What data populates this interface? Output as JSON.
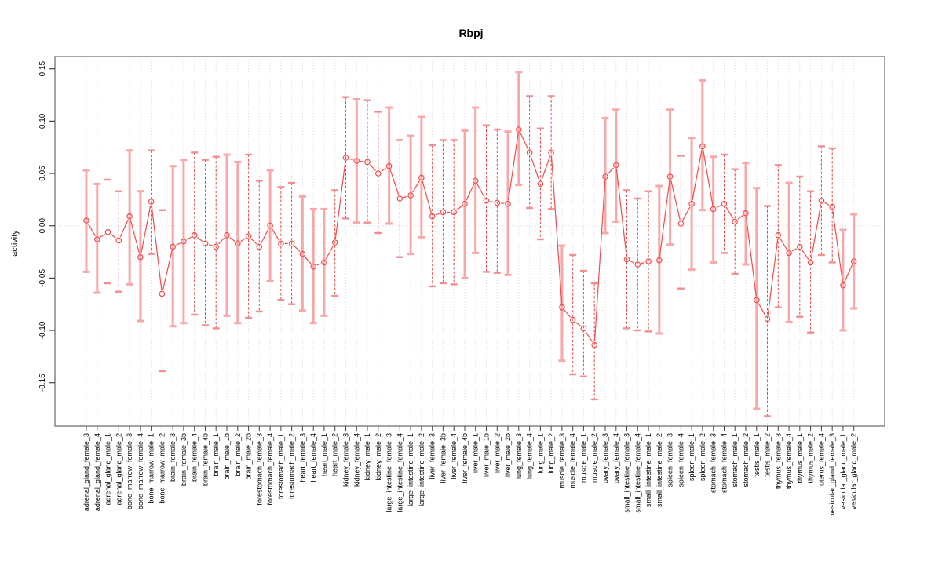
{
  "chart_data": {
    "type": "line",
    "subtype": "points-with-error-bars",
    "title": "Rbpj",
    "xlabel": "",
    "ylabel": "activity",
    "ylim": [
      -0.19,
      0.16
    ],
    "yticks": [
      "0.15",
      "0.10",
      "0.05",
      "0.00",
      "-0.05",
      "-0.10",
      "-0.15"
    ],
    "ytick_values": [
      0.15,
      0.1,
      0.05,
      0.0,
      -0.05,
      -0.1,
      -0.15
    ],
    "zero_line": true,
    "grid": "vertical-dotted-per-category",
    "legend": "none",
    "marker": "open-circle",
    "colors": {
      "line": "#f14c4c",
      "marker": "#f14c4c",
      "bar_solid": "#f8a8a8",
      "bar_dashed": "#e64545",
      "bar_dashed_cap": "#f08f8f",
      "grid": "#d4d4d4",
      "zero_line": "#d4d4d4",
      "box": "#858585",
      "tick": "#444444",
      "text": "#000000"
    },
    "points": [
      {
        "label": "adrenal_gland_female_3",
        "value": 0.005,
        "lo": -0.044,
        "hi": 0.053,
        "bar": "solid"
      },
      {
        "label": "adrenal_gland_female_4",
        "value": -0.013,
        "lo": -0.064,
        "hi": 0.04,
        "bar": "solid"
      },
      {
        "label": "adrenal_gland_male_1",
        "value": -0.006,
        "lo": -0.055,
        "hi": 0.044,
        "bar": "dashed"
      },
      {
        "label": "adrenal_gland_male_2",
        "value": -0.014,
        "lo": -0.063,
        "hi": 0.033,
        "bar": "dashed"
      },
      {
        "label": "bone_marrow_female_3",
        "value": 0.009,
        "lo": -0.056,
        "hi": 0.072,
        "bar": "solid"
      },
      {
        "label": "bone_marrow_female_4",
        "value": -0.03,
        "lo": -0.091,
        "hi": 0.033,
        "bar": "solid"
      },
      {
        "label": "bone_marrow_male_1",
        "value": 0.023,
        "lo": -0.027,
        "hi": 0.072,
        "bar": "dashed"
      },
      {
        "label": "bone_marrow_male_2",
        "value": -0.065,
        "lo": -0.139,
        "hi": 0.015,
        "bar": "dashed"
      },
      {
        "label": "brain_female_3",
        "value": -0.02,
        "lo": -0.096,
        "hi": 0.057,
        "bar": "solid"
      },
      {
        "label": "brain_female_3b",
        "value": -0.015,
        "lo": -0.093,
        "hi": 0.063,
        "bar": "solid"
      },
      {
        "label": "brain_female_4",
        "value": -0.009,
        "lo": -0.085,
        "hi": 0.07,
        "bar": "dashed"
      },
      {
        "label": "brain_female_4b",
        "value": -0.017,
        "lo": -0.095,
        "hi": 0.063,
        "bar": "dashed"
      },
      {
        "label": "brain_male_1",
        "value": -0.02,
        "lo": -0.098,
        "hi": 0.066,
        "bar": "dashed"
      },
      {
        "label": "brain_male_1b",
        "value": -0.009,
        "lo": -0.086,
        "hi": 0.068,
        "bar": "solid"
      },
      {
        "label": "brain_male_2",
        "value": -0.017,
        "lo": -0.093,
        "hi": 0.061,
        "bar": "solid"
      },
      {
        "label": "brain_male_2b",
        "value": -0.01,
        "lo": -0.088,
        "hi": 0.068,
        "bar": "dashed"
      },
      {
        "label": "forestomach_female_3",
        "value": -0.02,
        "lo": -0.082,
        "hi": 0.043,
        "bar": "dashed"
      },
      {
        "label": "forestomach_female_4",
        "value": 0.0,
        "lo": -0.053,
        "hi": 0.053,
        "bar": "solid"
      },
      {
        "label": "forestomach_male_1",
        "value": -0.017,
        "lo": -0.071,
        "hi": 0.037,
        "bar": "dashed"
      },
      {
        "label": "forestomach_male_2",
        "value": -0.017,
        "lo": -0.075,
        "hi": 0.041,
        "bar": "dashed"
      },
      {
        "label": "heart_female_3",
        "value": -0.027,
        "lo": -0.081,
        "hi": 0.028,
        "bar": "solid"
      },
      {
        "label": "heart_female_4",
        "value": -0.039,
        "lo": -0.093,
        "hi": 0.016,
        "bar": "solid"
      },
      {
        "label": "heart_male_1",
        "value": -0.035,
        "lo": -0.086,
        "hi": 0.016,
        "bar": "solid"
      },
      {
        "label": "heart_male_2",
        "value": -0.016,
        "lo": -0.067,
        "hi": 0.034,
        "bar": "dashed"
      },
      {
        "label": "kidney_female_3",
        "value": 0.065,
        "lo": 0.007,
        "hi": 0.123,
        "bar": "dashed"
      },
      {
        "label": "kidney_female_4",
        "value": 0.062,
        "lo": 0.003,
        "hi": 0.121,
        "bar": "solid"
      },
      {
        "label": "kidney_male_1",
        "value": 0.061,
        "lo": 0.003,
        "hi": 0.12,
        "bar": "dashed"
      },
      {
        "label": "kidney_male_2",
        "value": 0.05,
        "lo": -0.007,
        "hi": 0.109,
        "bar": "dashed"
      },
      {
        "label": "large_intestine_female_3",
        "value": 0.057,
        "lo": 0.002,
        "hi": 0.113,
        "bar": "solid"
      },
      {
        "label": "large_intestine_female_4",
        "value": 0.026,
        "lo": -0.03,
        "hi": 0.082,
        "bar": "dashed"
      },
      {
        "label": "large_intestine_male_1",
        "value": 0.029,
        "lo": -0.027,
        "hi": 0.086,
        "bar": "solid"
      },
      {
        "label": "large_intestine_male_2",
        "value": 0.046,
        "lo": -0.011,
        "hi": 0.104,
        "bar": "solid"
      },
      {
        "label": "liver_female_3",
        "value": 0.009,
        "lo": -0.058,
        "hi": 0.077,
        "bar": "dashed"
      },
      {
        "label": "liver_female_3b",
        "value": 0.013,
        "lo": -0.055,
        "hi": 0.082,
        "bar": "dashed"
      },
      {
        "label": "liver_female_4",
        "value": 0.013,
        "lo": -0.056,
        "hi": 0.082,
        "bar": "dashed"
      },
      {
        "label": "liver_female_4b",
        "value": 0.021,
        "lo": -0.05,
        "hi": 0.091,
        "bar": "solid"
      },
      {
        "label": "liver_male_1",
        "value": 0.043,
        "lo": -0.026,
        "hi": 0.113,
        "bar": "solid"
      },
      {
        "label": "liver_male_1b",
        "value": 0.024,
        "lo": -0.044,
        "hi": 0.096,
        "bar": "dashed"
      },
      {
        "label": "liver_male_2",
        "value": 0.022,
        "lo": -0.045,
        "hi": 0.092,
        "bar": "dashed"
      },
      {
        "label": "liver_male_2b",
        "value": 0.021,
        "lo": -0.047,
        "hi": 0.09,
        "bar": "solid"
      },
      {
        "label": "lung_female_3",
        "value": 0.092,
        "lo": 0.039,
        "hi": 0.147,
        "bar": "solid"
      },
      {
        "label": "lung_female_4",
        "value": 0.07,
        "lo": 0.017,
        "hi": 0.124,
        "bar": "dashed"
      },
      {
        "label": "lung_male_1",
        "value": 0.04,
        "lo": -0.013,
        "hi": 0.093,
        "bar": "dashed"
      },
      {
        "label": "lung_male_2",
        "value": 0.07,
        "lo": 0.016,
        "hi": 0.124,
        "bar": "dashed"
      },
      {
        "label": "muscle_female_3",
        "value": -0.078,
        "lo": -0.129,
        "hi": -0.019,
        "bar": "solid"
      },
      {
        "label": "muscle_female_4",
        "value": -0.09,
        "lo": -0.142,
        "hi": -0.028,
        "bar": "dashed"
      },
      {
        "label": "muscle_male_1",
        "value": -0.098,
        "lo": -0.144,
        "hi": -0.043,
        "bar": "dashed"
      },
      {
        "label": "muscle_male_2",
        "value": -0.114,
        "lo": -0.166,
        "hi": -0.055,
        "bar": "dashed"
      },
      {
        "label": "ovary_female_3",
        "value": 0.047,
        "lo": -0.007,
        "hi": 0.103,
        "bar": "solid"
      },
      {
        "label": "ovary_female_4",
        "value": 0.058,
        "lo": 0.004,
        "hi": 0.111,
        "bar": "solid"
      },
      {
        "label": "small_intestine_female_3",
        "value": -0.032,
        "lo": -0.098,
        "hi": 0.034,
        "bar": "dashed"
      },
      {
        "label": "small_intestine_female_4",
        "value": -0.037,
        "lo": -0.1,
        "hi": 0.026,
        "bar": "dashed"
      },
      {
        "label": "small_intestine_male_1",
        "value": -0.034,
        "lo": -0.101,
        "hi": 0.033,
        "bar": "dashed"
      },
      {
        "label": "small_intestine_male_2",
        "value": -0.033,
        "lo": -0.103,
        "hi": 0.038,
        "bar": "solid"
      },
      {
        "label": "spleen_female_3",
        "value": 0.047,
        "lo": -0.018,
        "hi": 0.111,
        "bar": "solid"
      },
      {
        "label": "spleen_female_4",
        "value": 0.002,
        "lo": -0.06,
        "hi": 0.067,
        "bar": "dashed"
      },
      {
        "label": "spleen_male_1",
        "value": 0.021,
        "lo": -0.042,
        "hi": 0.084,
        "bar": "solid"
      },
      {
        "label": "spleen_male_2",
        "value": 0.076,
        "lo": 0.015,
        "hi": 0.139,
        "bar": "solid"
      },
      {
        "label": "stomach_female_3",
        "value": 0.016,
        "lo": -0.035,
        "hi": 0.066,
        "bar": "solid"
      },
      {
        "label": "stomach_female_4",
        "value": 0.021,
        "lo": -0.026,
        "hi": 0.068,
        "bar": "dashed"
      },
      {
        "label": "stomach_male_1",
        "value": 0.004,
        "lo": -0.046,
        "hi": 0.054,
        "bar": "dashed"
      },
      {
        "label": "stomach_male_2",
        "value": 0.012,
        "lo": -0.037,
        "hi": 0.06,
        "bar": "solid"
      },
      {
        "label": "testis_male_1",
        "value": -0.071,
        "lo": -0.175,
        "hi": 0.036,
        "bar": "solid"
      },
      {
        "label": "testis_male_2",
        "value": -0.089,
        "lo": -0.182,
        "hi": 0.019,
        "bar": "dashed"
      },
      {
        "label": "thymus_female_3",
        "value": -0.009,
        "lo": -0.078,
        "hi": 0.058,
        "bar": "dashed"
      },
      {
        "label": "thymus_female_4",
        "value": -0.026,
        "lo": -0.092,
        "hi": 0.041,
        "bar": "solid"
      },
      {
        "label": "thymus_male_1",
        "value": -0.02,
        "lo": -0.087,
        "hi": 0.047,
        "bar": "dashed"
      },
      {
        "label": "thymus_male_2",
        "value": -0.035,
        "lo": -0.102,
        "hi": 0.033,
        "bar": "dashed"
      },
      {
        "label": "uterus_female_4",
        "value": 0.024,
        "lo": -0.028,
        "hi": 0.076,
        "bar": "dashed"
      },
      {
        "label": "vesicular_gland_female_3",
        "value": 0.018,
        "lo": -0.035,
        "hi": 0.074,
        "bar": "dashed"
      },
      {
        "label": "vesicular_gland_male_1",
        "value": -0.057,
        "lo": -0.1,
        "hi": -0.004,
        "bar": "solid"
      },
      {
        "label": "vesicular_gland_male_2",
        "value": -0.034,
        "lo": -0.079,
        "hi": 0.011,
        "bar": "solid"
      }
    ]
  }
}
